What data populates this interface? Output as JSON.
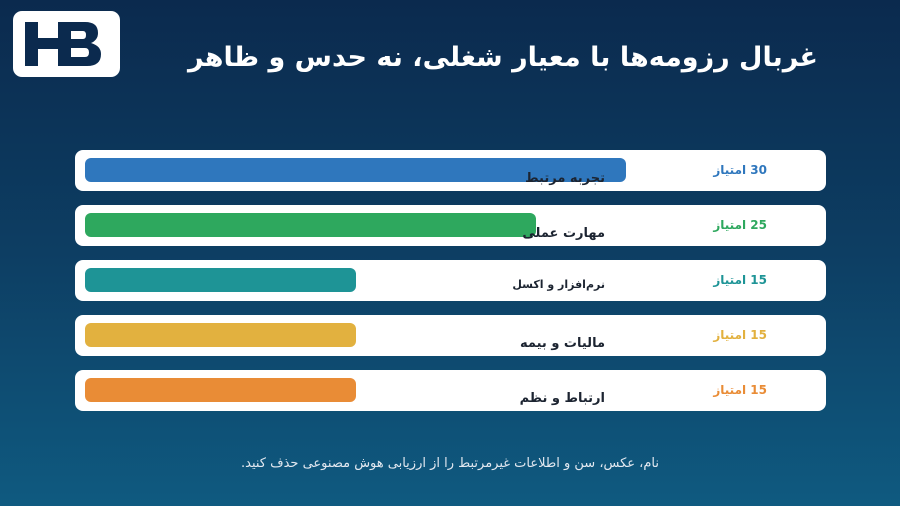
{
  "logo": {
    "text": "HB"
  },
  "header": {
    "title": "غربال رزومه‌ها با معیار شغلی، نه حدس و ظاهر"
  },
  "chart_data": {
    "type": "bar",
    "orientation": "horizontal",
    "categories": [
      "تجربه مرتبط",
      "مهارت عملی",
      "نرم‌افزار و اکسل",
      "مالیات و بیمه",
      "ارتباط و نظم"
    ],
    "values": [
      30,
      25,
      15,
      15,
      15
    ],
    "score_labels": [
      "30 امتیاز",
      "25 امتیاز",
      "15 امتیاز",
      "15 امتیاز",
      "15 امتیاز"
    ],
    "colors": [
      "#2f77bd",
      "#2ea85e",
      "#1e9496",
      "#e2b13f",
      "#e98c36"
    ],
    "xlim": [
      0,
      30
    ]
  },
  "footnote": "نام، عکس، سن و اطلاعات غیرمرتبط را از ارزیابی هوش مصنوعی حذف کنید."
}
